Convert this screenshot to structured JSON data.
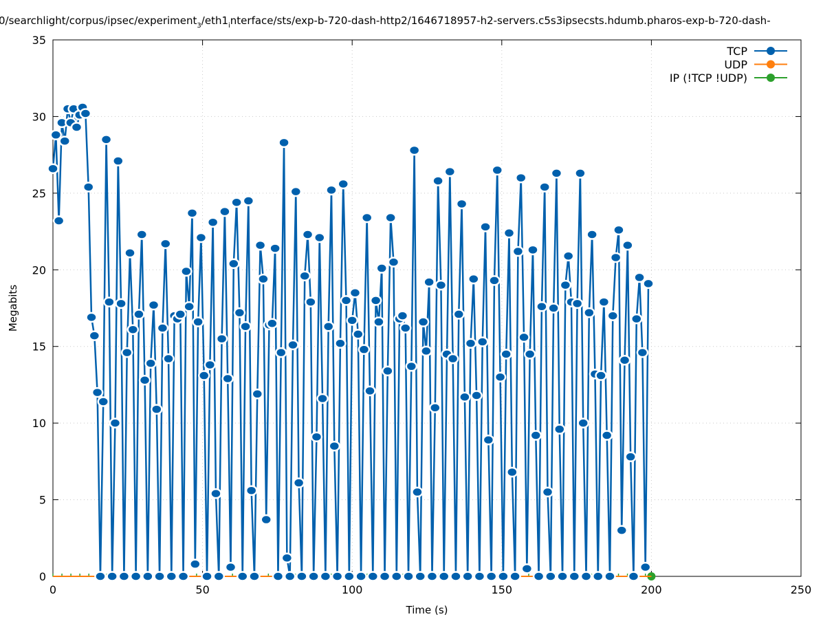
{
  "chart_data": {
    "type": "line",
    "title_parts": [
      "0/searchlight/corpus/ipsec/experiment",
      "3",
      "/eth1",
      "i",
      "nterface/sts/exp-b-720-dash-http2/1646718957-h2-servers.c5s3ipsecsts.hdumb.pharos-exp-b-720-dash-"
    ],
    "xlabel": "Time (s)",
    "ylabel": "Megabits",
    "xlim": [
      0,
      250
    ],
    "ylim": [
      0,
      35
    ],
    "xticks": [
      "0",
      "50",
      "100",
      "150",
      "200",
      "250"
    ],
    "yticks": [
      "0",
      "5",
      "10",
      "15",
      "20",
      "25",
      "30",
      "35"
    ],
    "grid": true,
    "legend_position": "top-right",
    "series": [
      {
        "name": "TCP",
        "color": "#0060ad",
        "x_start": 0,
        "x_step": 0.99,
        "values": [
          26.6,
          28.8,
          23.2,
          29.6,
          28.4,
          30.5,
          29.6,
          30.5,
          29.3,
          30.1,
          30.6,
          30.2,
          25.4,
          16.9,
          15.7,
          12.0,
          0,
          11.4,
          28.5,
          17.9,
          0,
          10.0,
          27.1,
          17.8,
          0,
          14.6,
          21.1,
          16.1,
          0,
          17.1,
          22.3,
          12.8,
          0,
          13.9,
          17.7,
          10.9,
          0,
          16.2,
          21.7,
          14.2,
          0,
          17.0,
          16.8,
          17.1,
          0,
          19.9,
          17.6,
          23.7,
          0.8,
          16.6,
          22.1,
          13.1,
          0,
          13.8,
          23.1,
          5.4,
          0,
          15.5,
          23.8,
          12.9,
          0.6,
          20.4,
          24.4,
          17.2,
          0,
          16.3,
          24.5,
          5.6,
          0,
          11.9,
          21.6,
          19.4,
          3.7,
          16.4,
          16.5,
          21.4,
          0,
          14.6,
          28.3,
          1.2,
          0,
          15.1,
          25.1,
          6.1,
          0,
          19.6,
          22.3,
          17.9,
          0,
          9.1,
          22.1,
          11.6,
          0,
          16.3,
          25.2,
          8.5,
          0,
          15.2,
          25.6,
          18.0,
          0,
          16.7,
          18.5,
          15.8,
          0,
          14.8,
          23.4,
          12.1,
          0,
          18.0,
          16.6,
          20.1,
          0,
          13.4,
          23.4,
          20.5,
          0,
          16.8,
          17.0,
          16.2,
          0,
          13.7,
          27.8,
          5.5,
          0,
          16.6,
          14.7,
          19.2,
          0,
          11.0,
          25.8,
          19.0,
          0,
          14.5,
          26.4,
          14.2,
          0,
          17.1,
          24.3,
          11.7,
          0,
          15.2,
          19.4,
          11.8,
          0,
          15.3,
          22.8,
          8.9,
          0,
          19.3,
          26.5,
          13.0,
          0,
          14.5,
          22.4,
          6.8,
          0,
          21.2,
          26.0,
          15.6,
          0.5,
          14.5,
          21.3,
          9.2,
          0,
          17.6,
          25.4,
          5.5,
          0,
          17.5,
          26.3,
          9.6,
          0,
          19.0,
          20.9,
          17.9,
          0,
          17.8,
          26.3,
          10.0,
          0,
          17.2,
          22.3,
          13.2,
          0,
          13.1,
          17.9,
          9.2,
          0,
          17.0,
          20.8,
          22.6,
          3.0,
          14.1,
          21.6,
          7.8,
          0,
          16.8,
          19.5,
          14.6,
          0.6,
          19.1
        ]
      },
      {
        "name": "UDP",
        "color": "#ff7f0e",
        "x": [
          0,
          200
        ],
        "values": [
          0,
          0
        ]
      },
      {
        "name": "IP (!TCP  !UDP)",
        "color": "#2ca02c",
        "x": [
          0,
          200
        ],
        "values": [
          0,
          0
        ]
      }
    ]
  }
}
